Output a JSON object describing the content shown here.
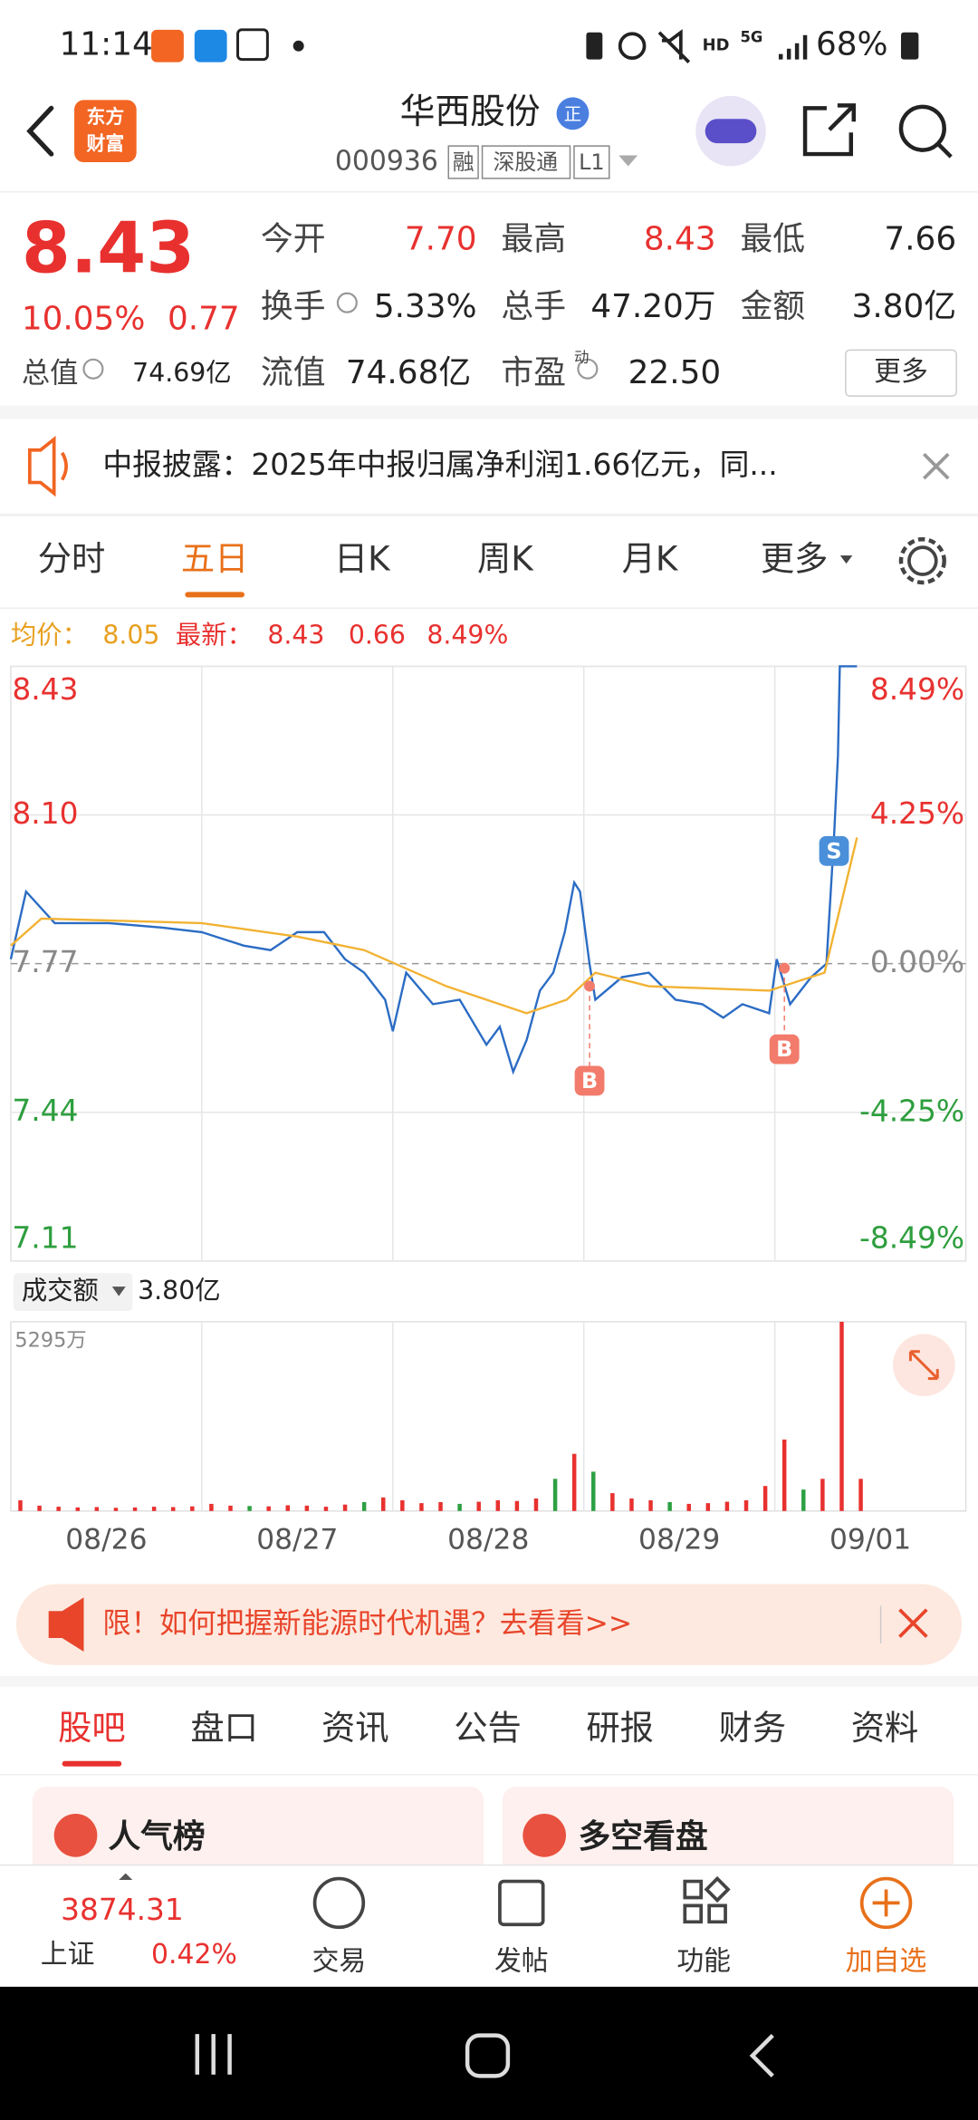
{
  "status_bar": {
    "time": "11:14",
    "hd": "HD",
    "network": "5G",
    "battery": "68%"
  },
  "header": {
    "logo": [
      "东方",
      "财富"
    ],
    "title": "华西股份",
    "badge": "正",
    "code": "000936",
    "tags": [
      "融",
      "深股通",
      "L1"
    ]
  },
  "quote": {
    "price": "8.43",
    "change_pct": "10.05%",
    "change": "0.77",
    "fields": [
      {
        "label": "今开",
        "value": "7.70"
      },
      {
        "label": "最高",
        "value": "8.43"
      },
      {
        "label": "最低",
        "value": "7.66"
      },
      {
        "label": "换手",
        "value": "5.33%"
      },
      {
        "label": "总手",
        "value": "47.20万"
      },
      {
        "label": "金额",
        "value": "3.80亿"
      },
      {
        "label": "总值",
        "value": "74.69亿"
      },
      {
        "label": "流值",
        "value": "74.68亿"
      },
      {
        "label": "市盈",
        "value": "22.50"
      }
    ],
    "pe_mark": "动",
    "more": "更多"
  },
  "notice": {
    "text": "中报披露：2025年中报归属净利润1.66亿元，同..."
  },
  "tabs": {
    "items": [
      "分时",
      "五日",
      "日K",
      "周K",
      "月K",
      "更多"
    ],
    "active": 1
  },
  "chart_info": {
    "avg_label": "均价：",
    "avg": "8.05",
    "latest_label": "最新：",
    "latest": "8.43",
    "change": "0.66",
    "change_pct": "8.49%"
  },
  "chart_data": [
    {
      "type": "line",
      "xlim": [
        0,
        5
      ],
      "ylim": [
        7.11,
        8.43
      ],
      "yticks": [
        8.43,
        {
          "value": 8.1,
          "label": "8.10"
        },
        7.77,
        7.44,
        7.11
      ],
      "y2lim": [
        -8.49,
        8.49
      ],
      "y2ticks": [
        {
          "value": 8.49,
          "label": "8.49%"
        },
        {
          "value": 4.25,
          "label": "4.25%"
        },
        {
          "value": 0,
          "label": "0.00%"
        },
        {
          "value": -4.25,
          "label": "-4.25%"
        },
        {
          "value": -8.49,
          "label": "-8.49%"
        }
      ],
      "series": [
        {
          "color": "#2b6cc4",
          "x": [
            0,
            0.08,
            0.23,
            0.51,
            0.79,
            1.0,
            1.22,
            1.36,
            1.5,
            1.64,
            1.75,
            1.85,
            1.96,
            2.0,
            2.07,
            2.21,
            2.35,
            2.49,
            2.56,
            2.63,
            2.7,
            2.77,
            2.84,
            2.9,
            2.95,
            2.98,
            3.03,
            3.06,
            3.2,
            3.34,
            3.48,
            3.62,
            3.73,
            3.83,
            3.97,
            4.01,
            4.08,
            4.19,
            4.27,
            4.31,
            4.33,
            4.34,
            4.43
          ],
          "values": [
            7.78,
            7.93,
            7.86,
            7.86,
            7.85,
            7.84,
            7.81,
            7.8,
            7.84,
            7.84,
            7.78,
            7.75,
            7.69,
            7.62,
            7.75,
            7.68,
            7.69,
            7.59,
            7.63,
            7.53,
            7.6,
            7.71,
            7.75,
            7.84,
            7.95,
            7.93,
            7.77,
            7.69,
            7.74,
            7.75,
            7.69,
            7.68,
            7.65,
            7.68,
            7.66,
            7.78,
            7.68,
            7.74,
            7.77,
            8.05,
            8.23,
            8.43,
            8.43
          ]
        },
        {
          "color": "#f2b233",
          "x": [
            0,
            0.16,
            1.0,
            1.5,
            1.85,
            2.28,
            2.7,
            2.91,
            3.06,
            3.34,
            3.97,
            4.26,
            4.43
          ],
          "values": [
            7.81,
            7.87,
            7.86,
            7.83,
            7.8,
            7.72,
            7.66,
            7.69,
            7.75,
            7.72,
            7.71,
            7.75,
            8.05
          ]
        }
      ],
      "annotations": [
        {
          "text": "B",
          "x": 3.03,
          "y": 7.72,
          "color": "#f27b6b"
        },
        {
          "text": "B",
          "x": 4.05,
          "y": 7.76,
          "color": "#f27b6b"
        },
        {
          "text": "S",
          "x": 4.31,
          "y": 8.02,
          "color": "#4a8fd9"
        }
      ]
    },
    {
      "type": "bar",
      "label": "成交额",
      "total": "3.80亿",
      "xlim": [
        0,
        5
      ],
      "ylim": [
        0,
        5295
      ],
      "yticks": [
        {
          "value": 5295,
          "label": "5295万"
        }
      ],
      "xticks": [
        {
          "value": 0.5,
          "label": "08/26"
        },
        {
          "value": 1.5,
          "label": "08/27"
        },
        {
          "value": 2.5,
          "label": "08/28"
        },
        {
          "value": 3.5,
          "label": "08/29"
        },
        {
          "value": 4.5,
          "label": "09/01"
        }
      ],
      "x": [
        0.05,
        0.15,
        0.25,
        0.35,
        0.45,
        0.55,
        0.65,
        0.75,
        0.85,
        0.95,
        1.05,
        1.15,
        1.25,
        1.35,
        1.45,
        1.55,
        1.65,
        1.75,
        1.85,
        1.95,
        2.05,
        2.15,
        2.25,
        2.35,
        2.45,
        2.55,
        2.65,
        2.75,
        2.85,
        2.95,
        3.05,
        3.15,
        3.25,
        3.35,
        3.45,
        3.55,
        3.65,
        3.75,
        3.85,
        3.95,
        4.05,
        4.15,
        4.25,
        4.35,
        4.45
      ],
      "values": [
        300,
        150,
        120,
        100,
        110,
        90,
        100,
        120,
        110,
        130,
        200,
        150,
        140,
        130,
        160,
        150,
        120,
        180,
        250,
        380,
        300,
        220,
        250,
        200,
        260,
        300,
        280,
        350,
        900,
        1600,
        1100,
        500,
        350,
        300,
        250,
        200,
        220,
        260,
        300,
        700,
        2000,
        600,
        900,
        5295,
        900
      ],
      "colors": [
        "#e8312f",
        "#e8312f",
        "#e8312f",
        "#e8312f",
        "#e8312f",
        "#e8312f",
        "#e8312f",
        "#e8312f",
        "#e8312f",
        "#e8312f",
        "#e8312f",
        "#e8312f",
        "#2ea043",
        "#e8312f",
        "#e8312f",
        "#e8312f",
        "#e8312f",
        "#e8312f",
        "#2ea043",
        "#e8312f",
        "#e8312f",
        "#e8312f",
        "#e8312f",
        "#2ea043",
        "#e8312f",
        "#e8312f",
        "#e8312f",
        "#e8312f",
        "#2ea043",
        "#e8312f",
        "#2ea043",
        "#e8312f",
        "#e8312f",
        "#e8312f",
        "#2ea043",
        "#e8312f",
        "#e8312f",
        "#e8312f",
        "#e8312f",
        "#e8312f",
        "#e8312f",
        "#2ea043",
        "#e8312f",
        "#e8312f",
        "#e8312f"
      ]
    }
  ],
  "banner": {
    "text": "限！如何把握新能源时代机遇？去看看>>"
  },
  "section_tabs": {
    "items": [
      "股吧",
      "盘口",
      "资讯",
      "公告",
      "研报",
      "财务",
      "资料"
    ],
    "active": 0
  },
  "cards": [
    "人气榜",
    "多空看盘"
  ],
  "bottom_nav": {
    "index_value": "3874.31",
    "index_name": "上证",
    "index_change": "0.42%",
    "items": [
      "交易",
      "发帖",
      "功能",
      "加自选"
    ]
  }
}
